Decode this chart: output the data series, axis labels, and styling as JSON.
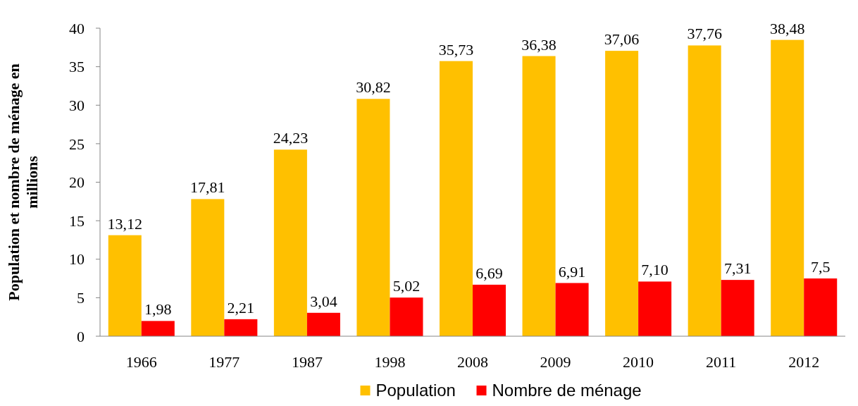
{
  "chart_data": {
    "type": "bar",
    "ylabel": "Population et nombre de ménage en millions",
    "categories": [
      "1966",
      "1977",
      "1987",
      "1998",
      "2008",
      "2009",
      "2010",
      "2011",
      "2012"
    ],
    "series": [
      {
        "name": "Population",
        "color": "#ffc000",
        "values": [
          13.12,
          17.81,
          24.23,
          30.82,
          35.73,
          36.38,
          37.06,
          37.76,
          38.48
        ],
        "value_labels": [
          "13,12",
          "17,81",
          "24,23",
          "30,82",
          "35,73",
          "36,38",
          "37,06",
          "37,76",
          "38,48"
        ]
      },
      {
        "name": "Nombre de ménage",
        "color": "#ff0000",
        "values": [
          1.98,
          2.21,
          3.04,
          5.02,
          6.69,
          6.91,
          7.1,
          7.31,
          7.5
        ],
        "value_labels": [
          "1,98",
          "2,21",
          "3,04",
          "5,02",
          "6,69",
          "6,91",
          "7,10",
          "7,31",
          "7,5"
        ]
      }
    ],
    "ylim": [
      0,
      40
    ],
    "yticks": [
      0,
      5,
      10,
      15,
      20,
      25,
      30,
      35,
      40
    ],
    "grid": false,
    "legend": "bottom"
  }
}
